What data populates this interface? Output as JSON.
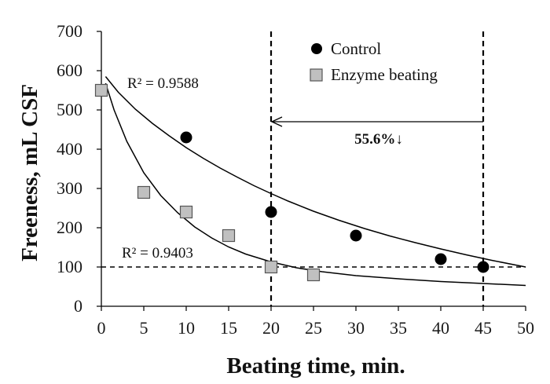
{
  "chart_data": {
    "type": "scatter",
    "title": "",
    "xlabel": "Beating time, min.",
    "ylabel": "Freeness, mL CSF",
    "xlim": [
      0,
      50
    ],
    "ylim": [
      0,
      700
    ],
    "xticks": [
      0,
      5,
      10,
      15,
      20,
      25,
      30,
      35,
      40,
      45,
      50
    ],
    "yticks": [
      0,
      100,
      200,
      300,
      400,
      500,
      600,
      700
    ],
    "grid": false,
    "legend_position": "top-right",
    "series": [
      {
        "name": "Control",
        "marker": "circle",
        "color": "#000000",
        "points": [
          [
            0,
            550
          ],
          [
            10,
            430
          ],
          [
            20,
            240
          ],
          [
            30,
            180
          ],
          [
            40,
            120
          ],
          [
            45,
            100
          ]
        ],
        "trendline": {
          "r2_label": "R² = 0.9588",
          "curve": [
            [
              0.5,
              585
            ],
            [
              2,
              545
            ],
            [
              4,
              502
            ],
            [
              6,
              466
            ],
            [
              8,
              434
            ],
            [
              10,
              404
            ],
            [
              12,
              377
            ],
            [
              14,
              352
            ],
            [
              16,
              329
            ],
            [
              18,
              307
            ],
            [
              20,
              287
            ],
            [
              22,
              268
            ],
            [
              25,
              242
            ],
            [
              28,
              219
            ],
            [
              31,
              198
            ],
            [
              34,
              179
            ],
            [
              37,
              162
            ],
            [
              40,
              146
            ],
            [
              43,
              131
            ],
            [
              46,
              117
            ],
            [
              50,
              100
            ]
          ]
        }
      },
      {
        "name": "Enzyme beating",
        "marker": "square",
        "color": "#c0c0c0",
        "points": [
          [
            0,
            550
          ],
          [
            5,
            290
          ],
          [
            10,
            240
          ],
          [
            15,
            180
          ],
          [
            20,
            100
          ],
          [
            25,
            80
          ]
        ],
        "trendline": {
          "r2_label": "R² = 0.9403",
          "curve": [
            [
              0.5,
              568
            ],
            [
              1.5,
              500
            ],
            [
              3,
              420
            ],
            [
              5,
              340
            ],
            [
              7,
              282
            ],
            [
              9,
              238
            ],
            [
              11,
              202
            ],
            [
              13,
              174
            ],
            [
              15,
              151
            ],
            [
              17,
              133
            ],
            [
              20,
              113
            ],
            [
              23,
              98
            ],
            [
              26,
              88
            ],
            [
              30,
              78
            ],
            [
              35,
              70
            ],
            [
              40,
              63
            ],
            [
              45,
              58
            ],
            [
              50,
              53
            ]
          ]
        }
      }
    ],
    "reference_lines": {
      "horizontal_y": 100,
      "vertical_x": [
        20,
        45
      ]
    },
    "annotation": {
      "text": "55.6%↓",
      "arrow_from_x": 45,
      "arrow_to_x": 20,
      "arrow_y": 470
    }
  }
}
